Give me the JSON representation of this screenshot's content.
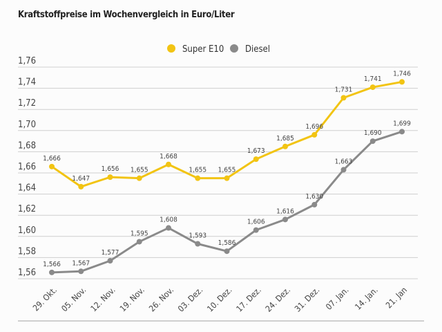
{
  "chart_data": {
    "type": "line",
    "title": "Kraftstoffpreise im Wochenvergleich in Euro/Liter",
    "categories": [
      "29. Okt.",
      "05. Nov.",
      "12. Nov.",
      "19. Nov.",
      "26. Nov.",
      "03. Dez.",
      "10. Dez.",
      "17. Dez.",
      "24. Dez.",
      "31. Dez.",
      "07. Jan.",
      "14. Jan.",
      "21. Jan"
    ],
    "series": [
      {
        "name": "Super E10",
        "color": "#f2c413",
        "values": [
          1.666,
          1.647,
          1.656,
          1.655,
          1.668,
          1.655,
          1.655,
          1.673,
          1.685,
          1.696,
          1.731,
          1.741,
          1.746
        ],
        "labels": [
          "1,666",
          "1,647",
          "1,656",
          "1,655",
          "1,668",
          "1,655",
          "1,655",
          "1,673",
          "1,685",
          "1,696",
          "1,731",
          "1,741",
          "1,746"
        ]
      },
      {
        "name": "Diesel",
        "color": "#8a8a8a",
        "values": [
          1.566,
          1.567,
          1.577,
          1.595,
          1.608,
          1.593,
          1.586,
          1.606,
          1.616,
          1.63,
          1.663,
          1.69,
          1.699
        ],
        "labels": [
          "1,566",
          "1,567",
          "1,577",
          "1,595",
          "1,608",
          "1,593",
          "1,586",
          "1,606",
          "1,616",
          "1,630",
          "1,663",
          "1,690",
          "1,699"
        ]
      }
    ],
    "yticks": [
      "1,56",
      "1,58",
      "1,60",
      "1,62",
      "1,64",
      "1,66",
      "1,68",
      "1,70",
      "1,72",
      "1,74",
      "1,76"
    ],
    "ylim": [
      1.56,
      1.76
    ],
    "grid": true,
    "legend_position": "top-center"
  }
}
